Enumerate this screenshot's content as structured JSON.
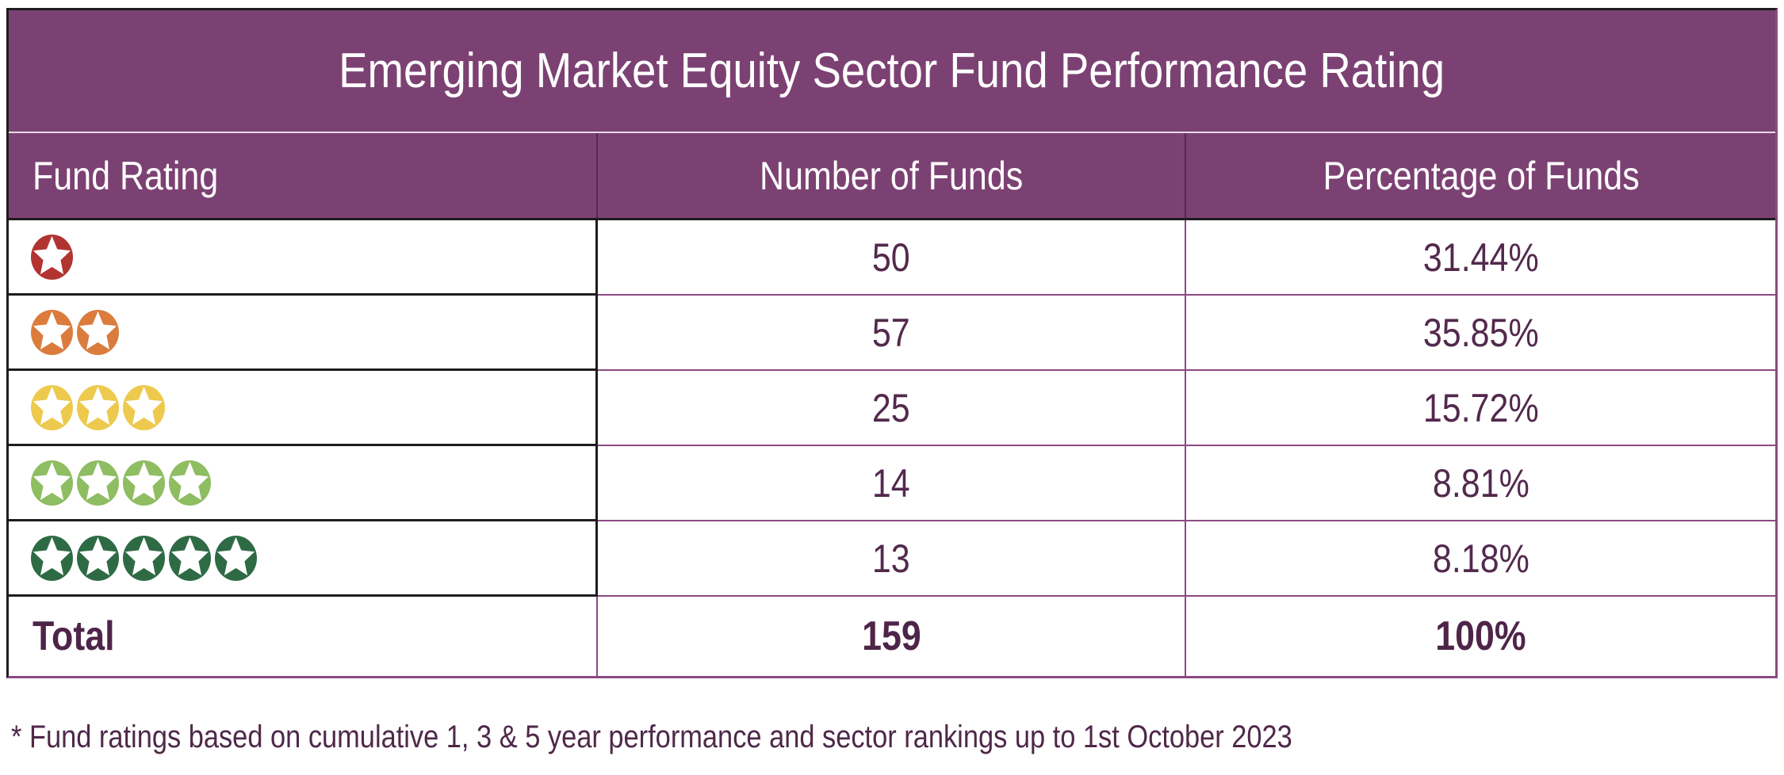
{
  "title": "Emerging Market Equity Sector Fund Performance Rating",
  "columns": {
    "rating": "Fund Rating",
    "count": "Number of Funds",
    "pct": "Percentage of Funds"
  },
  "rows": [
    {
      "rating_stars": 1,
      "star_color": "#b23431",
      "rating_label": "1 star",
      "funds": "50",
      "pct": "31.44%"
    },
    {
      "rating_stars": 2,
      "star_color": "#db7c3d",
      "rating_label": "2 stars",
      "funds": "57",
      "pct": "35.85%"
    },
    {
      "rating_stars": 3,
      "star_color": "#edca4d",
      "rating_label": "3 stars",
      "funds": "25",
      "pct": "15.72%"
    },
    {
      "rating_stars": 4,
      "star_color": "#8fbd62",
      "rating_label": "4 stars",
      "funds": "14",
      "pct": "8.81%"
    },
    {
      "rating_stars": 5,
      "star_color": "#2e6b45",
      "rating_label": "5 stars",
      "funds": "13",
      "pct": "8.18%"
    }
  ],
  "total": {
    "label": "Total",
    "funds": "159",
    "pct": "100%"
  },
  "footnote": "* Fund ratings based on cumulative 1, 3 & 5 year performance and sector rankings up to 1st October 2023",
  "colors": {
    "header_bg": "#7c4173",
    "header_text": "#ffffff",
    "cell_text": "#53294d",
    "border_dark": "#1e1c1e",
    "border_purple": "#8c4a82"
  }
}
